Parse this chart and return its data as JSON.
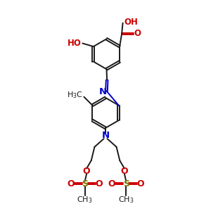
{
  "bg_color": "#ffffff",
  "bond_color": "#1a1a1a",
  "bond_width": 1.4,
  "imine_color": "#0000cc",
  "nitrogen_color": "#0000cc",
  "oxygen_color": "#cc0000",
  "sulfur_color": "#7a7a00",
  "carbon_color": "#1a1a1a",
  "fig_width": 3.0,
  "fig_height": 3.0,
  "dpi": 100,
  "xlim": [
    0,
    10
  ],
  "ylim": [
    0,
    10
  ]
}
